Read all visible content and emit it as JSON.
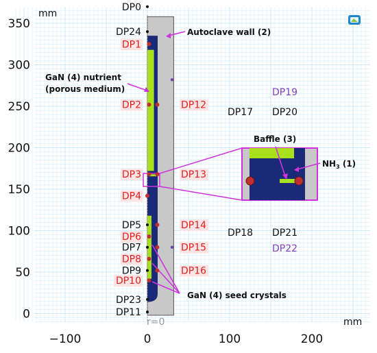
{
  "axes": {
    "unit_top": "mm",
    "unit_bottom": "mm",
    "r_zero": "r=0",
    "x_ticks": [
      {
        "value": -100,
        "label": "−100"
      },
      {
        "value": 0,
        "label": "0"
      },
      {
        "value": 100,
        "label": "100"
      },
      {
        "value": 200,
        "label": "200"
      }
    ],
    "y_ticks": [
      {
        "value": 0,
        "label": "0"
      },
      {
        "value": 50,
        "label": "50"
      },
      {
        "value": 100,
        "label": "100"
      },
      {
        "value": 150,
        "label": "150"
      },
      {
        "value": 200,
        "label": "200"
      },
      {
        "value": 250,
        "label": "250"
      },
      {
        "value": 300,
        "label": "300"
      },
      {
        "value": 350,
        "label": "350"
      }
    ],
    "x_range_mm": [
      -160,
      265
    ],
    "y_range_mm": [
      -12,
      390
    ],
    "grid": true
  },
  "annotations": {
    "autoclave_wall": "Autoclave wall (2)",
    "gan_nutrient_line1": "GaN (4) nutrient",
    "gan_nutrient_line2": "(porous medium)",
    "baffle": "Baffle (3)",
    "nh3_main": "NH",
    "nh3_sub": "3",
    "nh3_tail": " (1)",
    "seed_crystals": "GaN (4) seed crystals"
  },
  "datapoints": [
    {
      "id": "DP0",
      "r": 0,
      "z": 370,
      "color": "black",
      "side": "left",
      "highlight": false
    },
    {
      "id": "DP24",
      "r": 0,
      "z": 340,
      "color": "black",
      "side": "left",
      "highlight": false
    },
    {
      "id": "DP1",
      "r": 2,
      "z": 325,
      "color": "red",
      "side": "left",
      "highlight": true
    },
    {
      "id": "DP2",
      "r": 2,
      "z": 252,
      "color": "red",
      "side": "left",
      "highlight": true
    },
    {
      "id": "DP3",
      "r": 2,
      "z": 168,
      "color": "red",
      "side": "left",
      "highlight": true
    },
    {
      "id": "DP4",
      "r": 0,
      "z": 142,
      "color": "red",
      "side": "left",
      "highlight": true
    },
    {
      "id": "DP5",
      "r": 0,
      "z": 107,
      "color": "black",
      "side": "left",
      "highlight": false
    },
    {
      "id": "DP6",
      "r": 2,
      "z": 93,
      "color": "red",
      "side": "left",
      "highlight": true
    },
    {
      "id": "DP7",
      "r": 0,
      "z": 80,
      "color": "black",
      "side": "left",
      "highlight": false
    },
    {
      "id": "DP8",
      "r": 2,
      "z": 66,
      "color": "red",
      "side": "left",
      "highlight": true
    },
    {
      "id": "DP9",
      "r": 0,
      "z": 52,
      "color": "black",
      "side": "left",
      "highlight": false
    },
    {
      "id": "DP10",
      "r": 2,
      "z": 40,
      "color": "red",
      "side": "left",
      "highlight": true
    },
    {
      "id": "DP23",
      "r": 0,
      "z": 17,
      "color": "black",
      "side": "left",
      "highlight": false
    },
    {
      "id": "DP11",
      "r": 0,
      "z": 2,
      "color": "black",
      "side": "left",
      "highlight": false
    },
    {
      "id": "DP12",
      "r": 12,
      "z": 252,
      "color": "red",
      "side": "right",
      "highlight": true
    },
    {
      "id": "DP13",
      "r": 12,
      "z": 168,
      "color": "red",
      "side": "right",
      "highlight": true
    },
    {
      "id": "DP14",
      "r": 12,
      "z": 107,
      "color": "red",
      "side": "right",
      "highlight": true
    },
    {
      "id": "DP15",
      "r": 12,
      "z": 80,
      "color": "red",
      "side": "right",
      "highlight": true
    },
    {
      "id": "DP16",
      "r": 12,
      "z": 52,
      "color": "red",
      "side": "right",
      "highlight": true
    },
    {
      "id": "DP17",
      "r": 30,
      "z": 258,
      "color": "black",
      "side": "far",
      "highlight": false
    },
    {
      "id": "DP20",
      "r": 30,
      "z": 258,
      "color": "black",
      "side": "far",
      "highlight": false
    },
    {
      "id": "DP19",
      "r": 30,
      "z": 282,
      "color": "purple",
      "side": "far",
      "highlight": false
    },
    {
      "id": "DP18",
      "r": 30,
      "z": 103,
      "color": "black",
      "side": "far",
      "highlight": false
    },
    {
      "id": "DP21",
      "r": 30,
      "z": 103,
      "color": "black",
      "side": "far",
      "highlight": false
    },
    {
      "id": "DP22",
      "r": 30,
      "z": 80,
      "color": "purple",
      "side": "far",
      "highlight": false
    }
  ],
  "colors": {
    "wall": "#c8c8c8",
    "fluid": "#1a2a78",
    "gan": "#a8e01c",
    "magenta": "#cc33dd",
    "grid": "#bfe3f5",
    "red_label": "#e02020",
    "red_label_bg": "#fde4e4",
    "purple_label": "#8040c0",
    "seed_dot": "#b05020"
  }
}
